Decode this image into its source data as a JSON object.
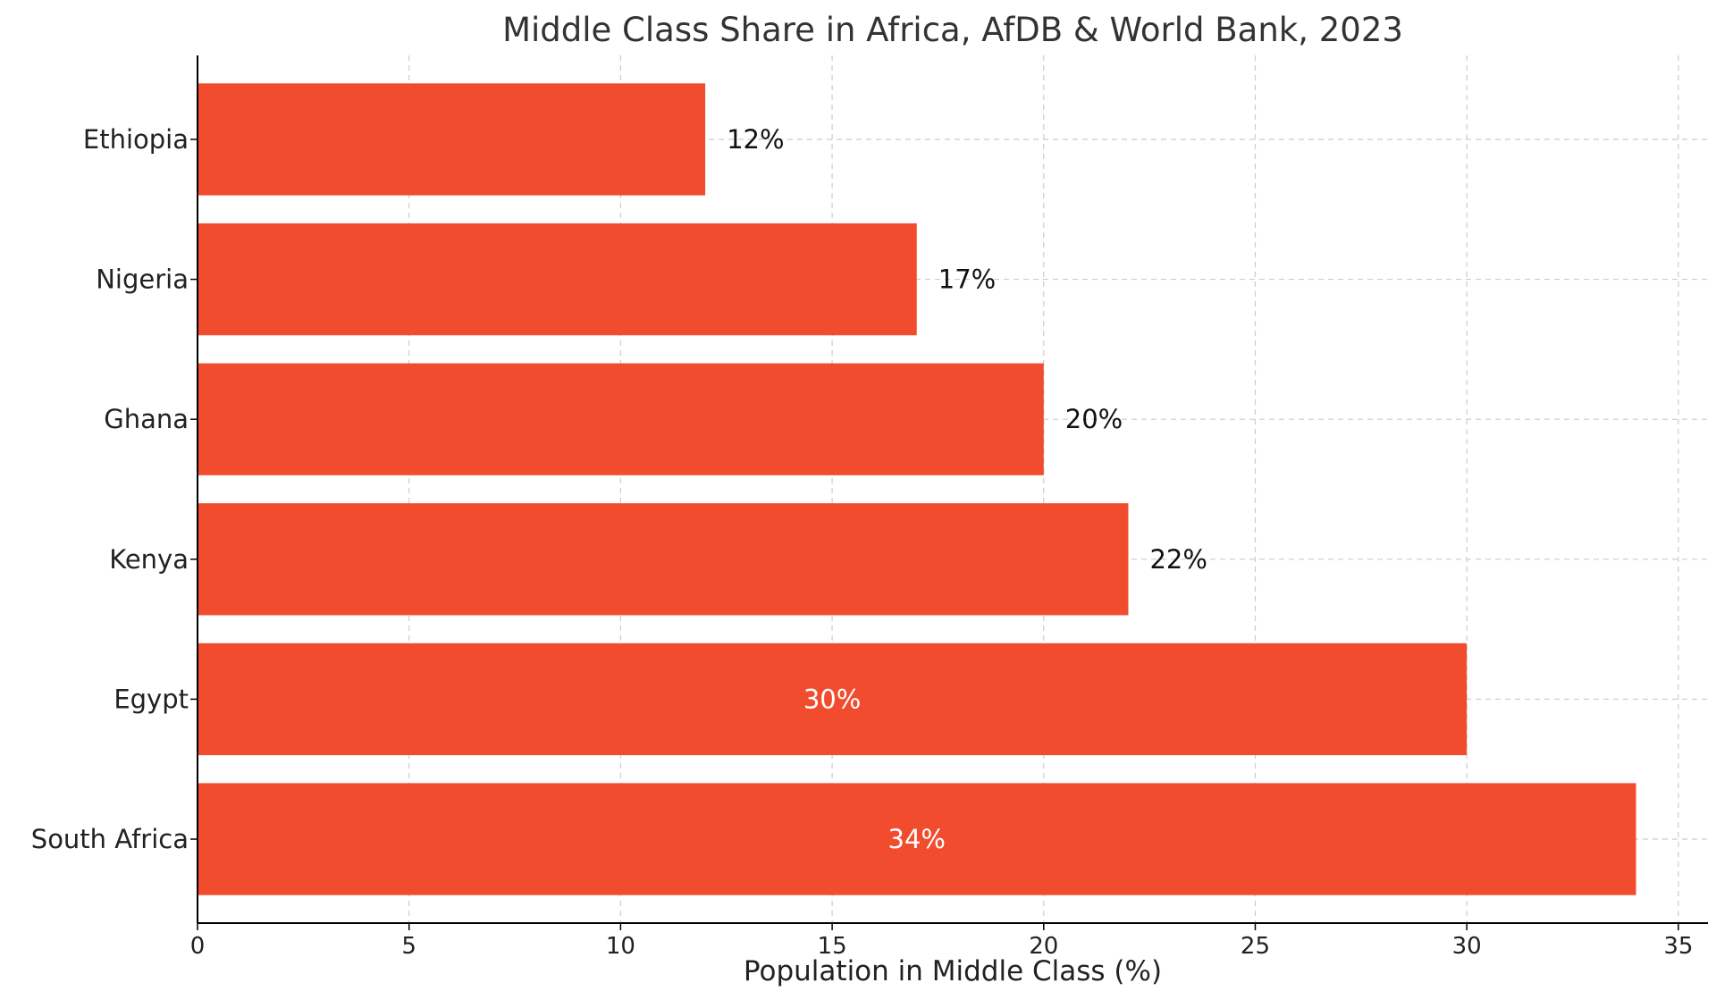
{
  "chart_data": {
    "type": "bar",
    "orientation": "horizontal",
    "title": "Middle Class Share in Africa, AfDB & World Bank, 2023",
    "xlabel": "Population in Middle Class (%)",
    "ylabel": "",
    "xlim": [
      0,
      35.7
    ],
    "xticks": [
      0,
      5,
      10,
      15,
      20,
      25,
      30,
      35
    ],
    "grid": true,
    "categories": [
      "Ethiopia",
      "Nigeria",
      "Ghana",
      "Kenya",
      "Egypt",
      "South Africa"
    ],
    "values": [
      12,
      17,
      20,
      22,
      30,
      34
    ],
    "data_labels": [
      "12%",
      "17%",
      "20%",
      "22%",
      "30%",
      "34%"
    ],
    "bar_color": "#f24c2e",
    "label_color_outside": "#111111",
    "label_color_inside": "#ffffff"
  }
}
